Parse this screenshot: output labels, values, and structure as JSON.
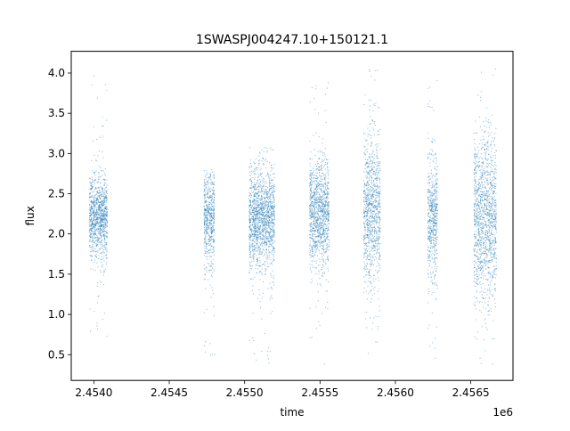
{
  "chart_data": {
    "type": "scatter",
    "title": "1SWASPJ004247.10+150121.1",
    "xlabel": "time",
    "ylabel": "flux",
    "x_offset_label": "1e6",
    "xlim": [
      2453850,
      2456780
    ],
    "ylim": [
      0.18,
      4.27
    ],
    "x_ticks": [
      2453850,
      2454000,
      2454500,
      2455000,
      2455500,
      2456000,
      2456500
    ],
    "x_tick_labels": [
      "",
      "2.4540",
      "2.4545",
      "2.4550",
      "2.4555",
      "2.4560",
      "2.4565"
    ],
    "y_ticks": [
      0.5,
      1.0,
      1.5,
      2.0,
      2.5,
      3.0,
      3.5,
      4.0
    ],
    "y_tick_labels": [
      "0.5",
      "1.0",
      "1.5",
      "2.0",
      "2.5",
      "3.0",
      "3.5",
      "4.0"
    ],
    "grid": false,
    "marker_color": "#1f77b4",
    "series": [
      {
        "observing_seasons": [
          {
            "x_range": [
              2453970,
              2454090
            ],
            "y_center": 2.2,
            "y_spread": 0.25,
            "y_range": [
              0.7,
              4.07
            ]
          },
          {
            "x_range": [
              2454730,
              2454800
            ],
            "y_center": 2.2,
            "y_spread": 0.3,
            "y_range": [
              0.38,
              2.8
            ]
          },
          {
            "x_range": [
              2455030,
              2455200
            ],
            "y_center": 2.2,
            "y_spread": 0.3,
            "y_range": [
              0.37,
              3.1
            ]
          },
          {
            "x_range": [
              2455430,
              2455560
            ],
            "y_center": 2.25,
            "y_spread": 0.32,
            "y_range": [
              0.37,
              3.9
            ]
          },
          {
            "x_range": [
              2455790,
              2455900
            ],
            "y_center": 2.3,
            "y_spread": 0.45,
            "y_range": [
              0.43,
              4.07
            ]
          },
          {
            "x_range": [
              2456215,
              2456280
            ],
            "y_center": 2.2,
            "y_spread": 0.35,
            "y_range": [
              0.42,
              4.05
            ]
          },
          {
            "x_range": [
              2456520,
              2456670
            ],
            "y_center": 2.2,
            "y_spread": 0.5,
            "y_range": [
              0.37,
              4.07
            ]
          }
        ]
      }
    ]
  }
}
